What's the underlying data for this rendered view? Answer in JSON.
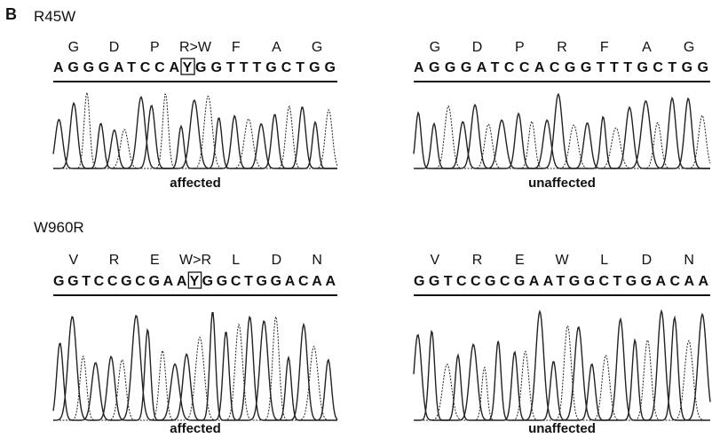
{
  "panel_label": "B",
  "rows": [
    {
      "mutation": "R45W",
      "panels": [
        {
          "amino_acids": [
            "G",
            "D",
            "P",
            "R>W",
            "F",
            "A",
            "G"
          ],
          "seq_before": "AGGGATCCA",
          "seq_boxed": "Y",
          "seq_after": "GGTTTGCTGG",
          "caption": "affected"
        },
        {
          "amino_acids": [
            "G",
            "D",
            "P",
            "R",
            "F",
            "A",
            "G"
          ],
          "seq_before": "AGGGATCCACGGTTTGCTGG",
          "seq_boxed": null,
          "seq_after": null,
          "caption": "unaffected"
        }
      ]
    },
    {
      "mutation": "W960R",
      "panels": [
        {
          "amino_acids": [
            "V",
            "R",
            "E",
            "W>R",
            "L",
            "D",
            "N"
          ],
          "seq_before": "GGTCCGCGAA",
          "seq_boxed": "Y",
          "seq_after": "GGCTGGACAA",
          "caption": "affected"
        },
        {
          "amino_acids": [
            "V",
            "R",
            "E",
            "W",
            "L",
            "D",
            "N"
          ],
          "seq_before": "GGTCCGCGAATGGCTGGACAA",
          "seq_boxed": null,
          "seq_after": null,
          "caption": "unaffected"
        }
      ]
    }
  ]
}
